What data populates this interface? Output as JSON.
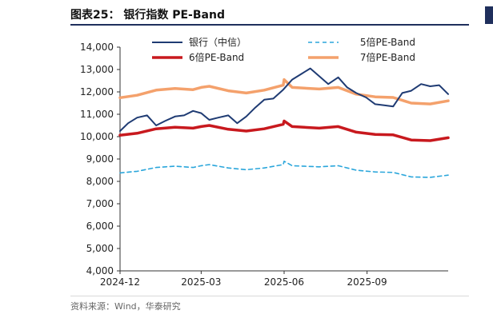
{
  "header": {
    "title": "图表25：  银行指数 PE-Band"
  },
  "footer": {
    "source": "资料来源：Wind，华泰研究"
  },
  "colors": {
    "bank": "#1f3b73",
    "pe5": "#2aa6db",
    "pe6": "#c8191e",
    "pe7": "#f4a16c",
    "axis": "#333333"
  },
  "chart_data": {
    "type": "line",
    "ylim": [
      4000,
      14000
    ],
    "yticks": [
      4000,
      5000,
      6000,
      7000,
      8000,
      9000,
      10000,
      11000,
      12000,
      13000,
      14000
    ],
    "ytick_labels": [
      "4,000",
      "5,000",
      "6,000",
      "7,000",
      "8,000",
      "9,000",
      "10,000",
      "11,000",
      "12,000",
      "13,000",
      "14,000"
    ],
    "xlim": [
      "2024-12-01",
      "2025-11-30"
    ],
    "xticks": [
      "2024-12-01",
      "2025-03-01",
      "2025-06-01",
      "2025-09-01"
    ],
    "xtick_labels": [
      "2024-12",
      "2025-03",
      "2025-06",
      "2025-09"
    ],
    "legend": "top",
    "series": [
      {
        "name": "银行（中信）",
        "style": "solid",
        "points": [
          [
            "2024-12-01",
            10250
          ],
          [
            "2024-12-10",
            10600
          ],
          [
            "2024-12-20",
            10850
          ],
          [
            "2024-12-31",
            10950
          ],
          [
            "2025-01-10",
            10500
          ],
          [
            "2025-01-20",
            10700
          ],
          [
            "2025-01-31",
            10900
          ],
          [
            "2025-02-10",
            10950
          ],
          [
            "2025-02-20",
            11150
          ],
          [
            "2025-03-01",
            11050
          ],
          [
            "2025-03-10",
            10750
          ],
          [
            "2025-03-20",
            10850
          ],
          [
            "2025-03-31",
            10950
          ],
          [
            "2025-04-10",
            10600
          ],
          [
            "2025-04-20",
            10900
          ],
          [
            "2025-04-30",
            11300
          ],
          [
            "2025-05-10",
            11650
          ],
          [
            "2025-05-20",
            11700
          ],
          [
            "2025-05-31",
            12100
          ],
          [
            "2025-06-10",
            12550
          ],
          [
            "2025-06-20",
            12800
          ],
          [
            "2025-06-30",
            13050
          ],
          [
            "2025-07-10",
            12700
          ],
          [
            "2025-07-20",
            12350
          ],
          [
            "2025-07-31",
            12650
          ],
          [
            "2025-08-10",
            12200
          ],
          [
            "2025-08-20",
            11950
          ],
          [
            "2025-08-31",
            11750
          ],
          [
            "2025-09-10",
            11450
          ],
          [
            "2025-09-20",
            11400
          ],
          [
            "2025-09-30",
            11350
          ],
          [
            "2025-10-10",
            11950
          ],
          [
            "2025-10-20",
            12050
          ],
          [
            "2025-10-31",
            12350
          ],
          [
            "2025-11-10",
            12250
          ],
          [
            "2025-11-20",
            12300
          ],
          [
            "2025-11-30",
            11900
          ]
        ]
      },
      {
        "name": "5倍PE-Band",
        "style": "dashed",
        "points": [
          [
            "2024-12-01",
            8380
          ],
          [
            "2024-12-20",
            8450
          ],
          [
            "2025-01-10",
            8620
          ],
          [
            "2025-01-31",
            8680
          ],
          [
            "2025-02-20",
            8620
          ],
          [
            "2025-03-01",
            8700
          ],
          [
            "2025-03-10",
            8750
          ],
          [
            "2025-03-31",
            8600
          ],
          [
            "2025-04-20",
            8520
          ],
          [
            "2025-05-10",
            8600
          ],
          [
            "2025-05-31",
            8750
          ],
          [
            "2025-06-01",
            8900
          ],
          [
            "2025-06-10",
            8700
          ],
          [
            "2025-07-10",
            8650
          ],
          [
            "2025-07-31",
            8700
          ],
          [
            "2025-08-20",
            8500
          ],
          [
            "2025-09-10",
            8420
          ],
          [
            "2025-09-30",
            8400
          ],
          [
            "2025-10-20",
            8200
          ],
          [
            "2025-11-10",
            8180
          ],
          [
            "2025-11-30",
            8280
          ]
        ]
      },
      {
        "name": "6倍PE-Band",
        "style": "solid",
        "points": [
          [
            "2024-12-01",
            10060
          ],
          [
            "2024-12-20",
            10150
          ],
          [
            "2025-01-10",
            10350
          ],
          [
            "2025-01-31",
            10420
          ],
          [
            "2025-02-20",
            10380
          ],
          [
            "2025-03-01",
            10450
          ],
          [
            "2025-03-10",
            10500
          ],
          [
            "2025-03-31",
            10330
          ],
          [
            "2025-04-20",
            10250
          ],
          [
            "2025-05-10",
            10350
          ],
          [
            "2025-05-31",
            10550
          ],
          [
            "2025-06-01",
            10700
          ],
          [
            "2025-06-10",
            10450
          ],
          [
            "2025-07-10",
            10380
          ],
          [
            "2025-07-31",
            10450
          ],
          [
            "2025-08-20",
            10200
          ],
          [
            "2025-09-10",
            10100
          ],
          [
            "2025-09-30",
            10080
          ],
          [
            "2025-10-20",
            9850
          ],
          [
            "2025-11-10",
            9820
          ],
          [
            "2025-11-30",
            9950
          ]
        ]
      },
      {
        "name": "7倍PE-Band",
        "style": "solid",
        "points": [
          [
            "2024-12-01",
            11740
          ],
          [
            "2024-12-20",
            11850
          ],
          [
            "2025-01-10",
            12080
          ],
          [
            "2025-01-31",
            12150
          ],
          [
            "2025-02-20",
            12100
          ],
          [
            "2025-03-01",
            12200
          ],
          [
            "2025-03-10",
            12250
          ],
          [
            "2025-03-31",
            12050
          ],
          [
            "2025-04-20",
            11950
          ],
          [
            "2025-05-10",
            12080
          ],
          [
            "2025-05-31",
            12300
          ],
          [
            "2025-06-01",
            12550
          ],
          [
            "2025-06-10",
            12200
          ],
          [
            "2025-07-10",
            12130
          ],
          [
            "2025-07-31",
            12200
          ],
          [
            "2025-08-20",
            11900
          ],
          [
            "2025-09-10",
            11780
          ],
          [
            "2025-09-30",
            11750
          ],
          [
            "2025-10-20",
            11500
          ],
          [
            "2025-11-10",
            11460
          ],
          [
            "2025-11-30",
            11600
          ]
        ]
      }
    ]
  }
}
